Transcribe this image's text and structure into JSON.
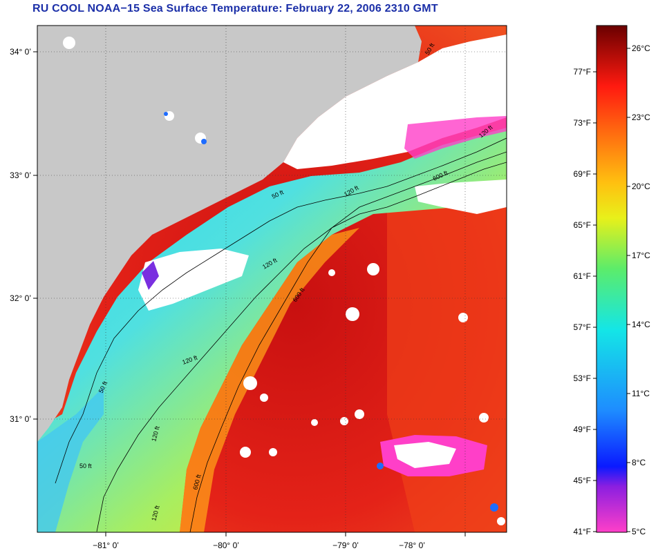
{
  "title": "RU COOL  NOAA−15  Sea Surface Temperature:  February 22, 2006 2310 GMT",
  "map": {
    "lat_labels": [
      "34° 0’",
      "33° 0’",
      "32° 0’",
      "31° 0’"
    ],
    "lon_labels": [
      "−81° 0’",
      "−80° 0’",
      "−79° 0’",
      "−78° 0’"
    ],
    "contour_labels": [
      "50 ft",
      "50 ft",
      "50 ft",
      "50 ft",
      "120 ft",
      "120 ft",
      "120 ft",
      "120 ft",
      "120 ft",
      "120 ft",
      "600 ft",
      "600 ft",
      "600 ft"
    ],
    "colors": {
      "land": "#c8c8c8",
      "cloud": "#ffffff",
      "warm": "#e0241c",
      "hot": "#c41010"
    }
  },
  "colorbar": {
    "fahrenheit_labels": [
      "77°F",
      "73°F",
      "69°F",
      "65°F",
      "61°F",
      "57°F",
      "53°F",
      "49°F",
      "45°F",
      "41°F"
    ],
    "celsius_labels": [
      "26°C",
      "23°C",
      "20°C",
      "17°C",
      "14°C",
      "11°C",
      "8°C",
      "5°C"
    ],
    "range_celsius": [
      5,
      27
    ]
  }
}
